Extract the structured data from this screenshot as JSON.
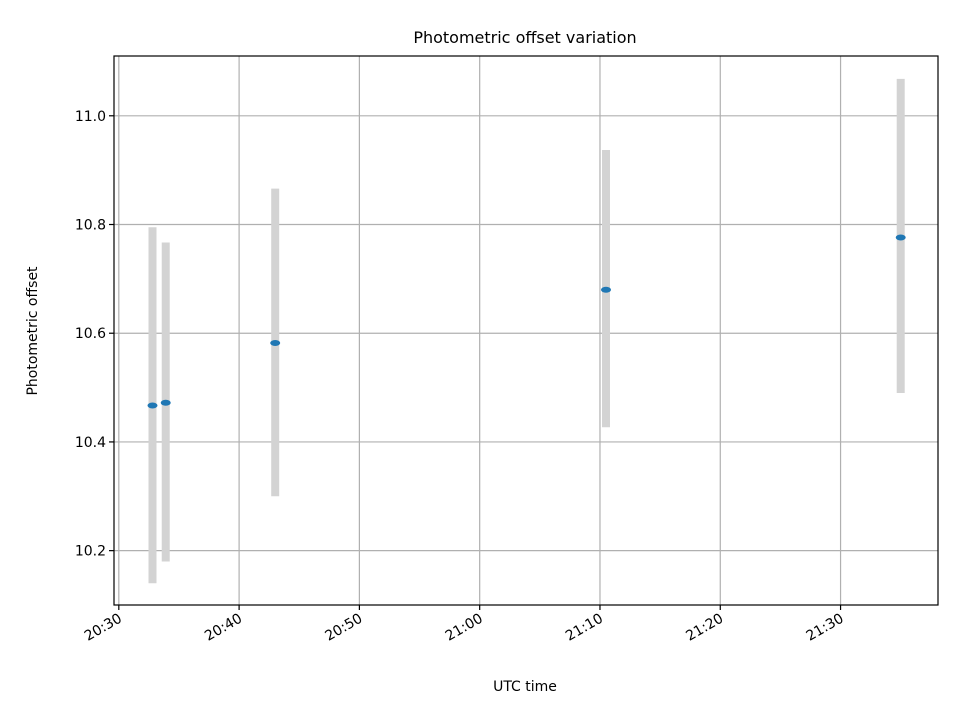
{
  "chart_data": {
    "type": "scatter",
    "title": "Photometric offset variation",
    "xlabel": "UTC time",
    "ylabel": "Photometric offset",
    "x_unit": "UTC time of day",
    "x_ticks": [
      "20:30",
      "20:40",
      "20:50",
      "21:00",
      "21:10",
      "21:20",
      "21:30"
    ],
    "y_ticks": [
      "10.2",
      "10.4",
      "10.6",
      "10.8",
      "11.0"
    ],
    "xlim": [
      "20:29.6",
      "21:38.1"
    ],
    "ylim": [
      10.1,
      11.11
    ],
    "grid": true,
    "points": [
      {
        "x": "20:32.8",
        "y": 10.467,
        "ymin": 10.14,
        "ymax": 10.795
      },
      {
        "x": "20:33.9",
        "y": 10.472,
        "ymin": 10.18,
        "ymax": 10.767
      },
      {
        "x": "20:43.0",
        "y": 10.582,
        "ymin": 10.3,
        "ymax": 10.866
      },
      {
        "x": "21:10.5",
        "y": 10.68,
        "ymin": 10.427,
        "ymax": 10.937
      },
      {
        "x": "21:35.0",
        "y": 10.776,
        "ymin": 10.49,
        "ymax": 11.068
      }
    ],
    "marker_color": "#1f77b4",
    "errorbar_color": "#d3d3d3",
    "grid_color": "#b0b0b0"
  }
}
